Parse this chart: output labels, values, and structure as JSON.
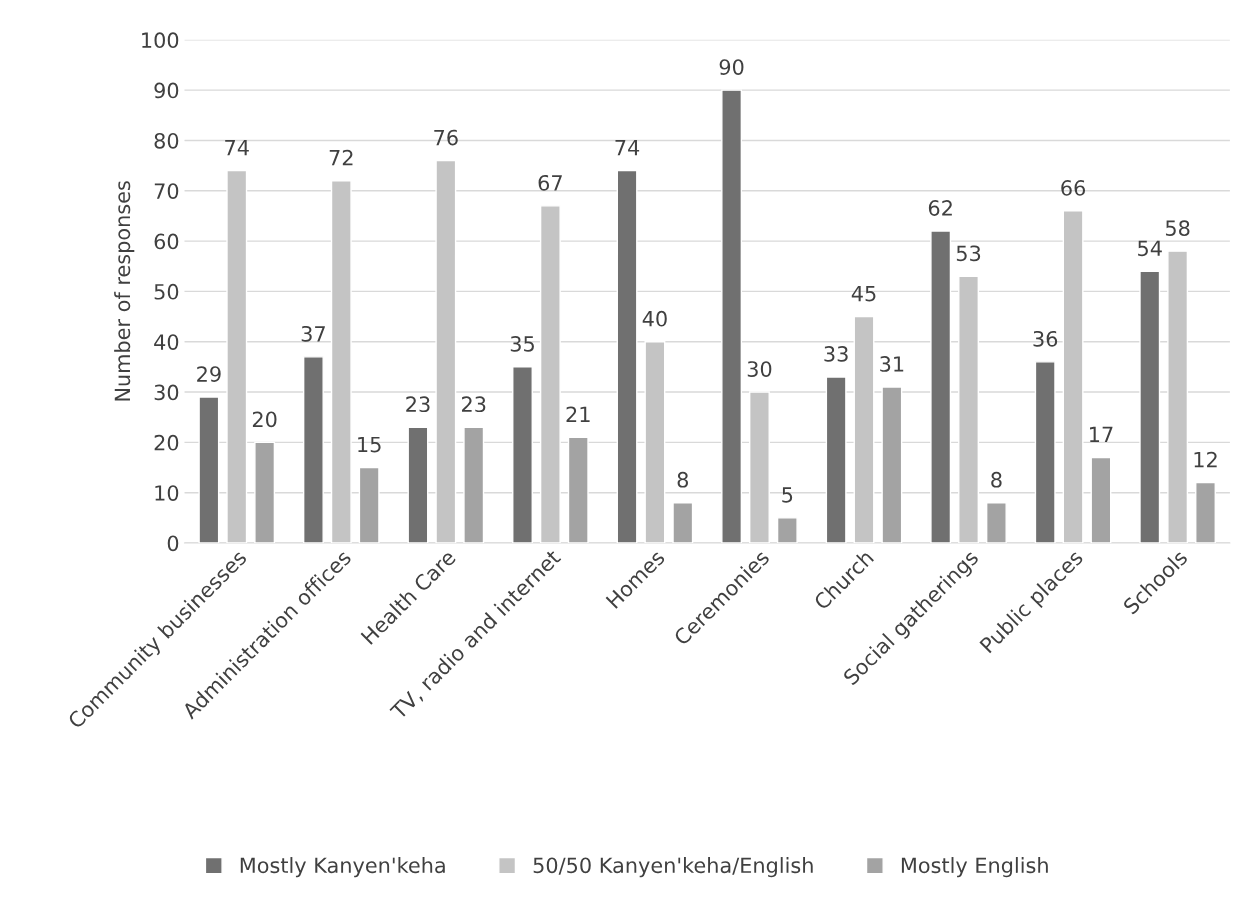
{
  "chart_data": {
    "type": "bar",
    "ylabel": "Number of responses",
    "categories": [
      "Community businesses",
      "Administration offices",
      "Health Care",
      "TV, radio and internet",
      "Homes",
      "Ceremonies",
      "Church",
      "Social gatherings",
      "Public places",
      "Schools"
    ],
    "series": [
      {
        "name": "Mostly Kanyen'keha",
        "color": "#707070",
        "values": [
          29,
          37,
          23,
          35,
          74,
          90,
          33,
          62,
          36,
          54
        ]
      },
      {
        "name": "50/50 Kanyen'keha/English",
        "color": "#c4c4c4",
        "values": [
          74,
          72,
          76,
          67,
          40,
          30,
          45,
          53,
          66,
          58
        ]
      },
      {
        "name": "Mostly English",
        "color": "#a3a3a3",
        "values": [
          20,
          15,
          23,
          21,
          8,
          5,
          31,
          8,
          17,
          12
        ]
      }
    ],
    "ylim": [
      0,
      100
    ],
    "yticks": [
      0,
      10,
      20,
      30,
      40,
      50,
      60,
      70,
      80,
      90,
      100
    ],
    "grid": "y",
    "legend": "bottom",
    "data_labels": true
  }
}
